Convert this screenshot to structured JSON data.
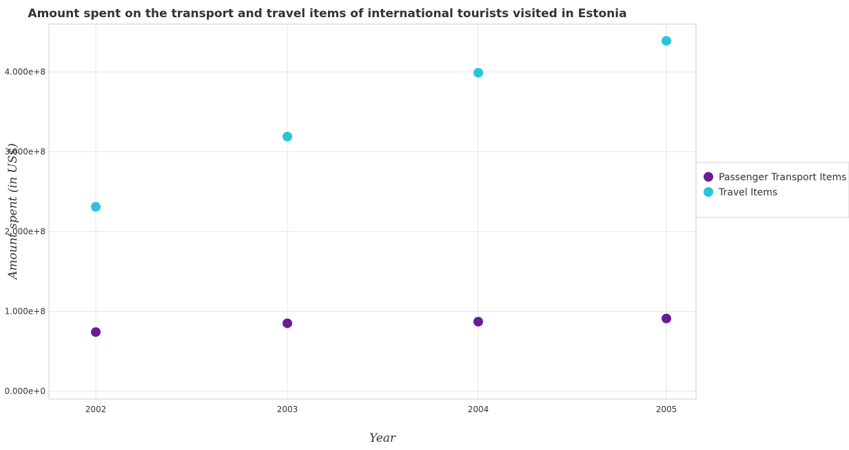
{
  "chart_data": {
    "type": "scatter",
    "title": "Amount spent on the transport and travel items of international tourists visited in Estonia",
    "xlabel": "Year",
    "ylabel": "Amount spent (in US$)",
    "categories": [
      "2002",
      "2003",
      "2004",
      "2005"
    ],
    "y_ticks": [
      0,
      100000000,
      200000000,
      300000000,
      400000000
    ],
    "y_tick_labels": [
      "0.000e+0",
      "1.000e+8",
      "2.000e+8",
      "3.000e+8",
      "4.000e+8"
    ],
    "ylim": [
      -10000000,
      460000000
    ],
    "grid": true,
    "legend_position": "right",
    "series": [
      {
        "name": "Passenger Transport Items",
        "color": "#6a1b9a",
        "values": [
          74000000,
          85000000,
          87000000,
          91000000
        ]
      },
      {
        "name": "Travel Items",
        "color": "#26c6da",
        "values": [
          231000000,
          319000000,
          399000000,
          439000000
        ]
      }
    ]
  }
}
